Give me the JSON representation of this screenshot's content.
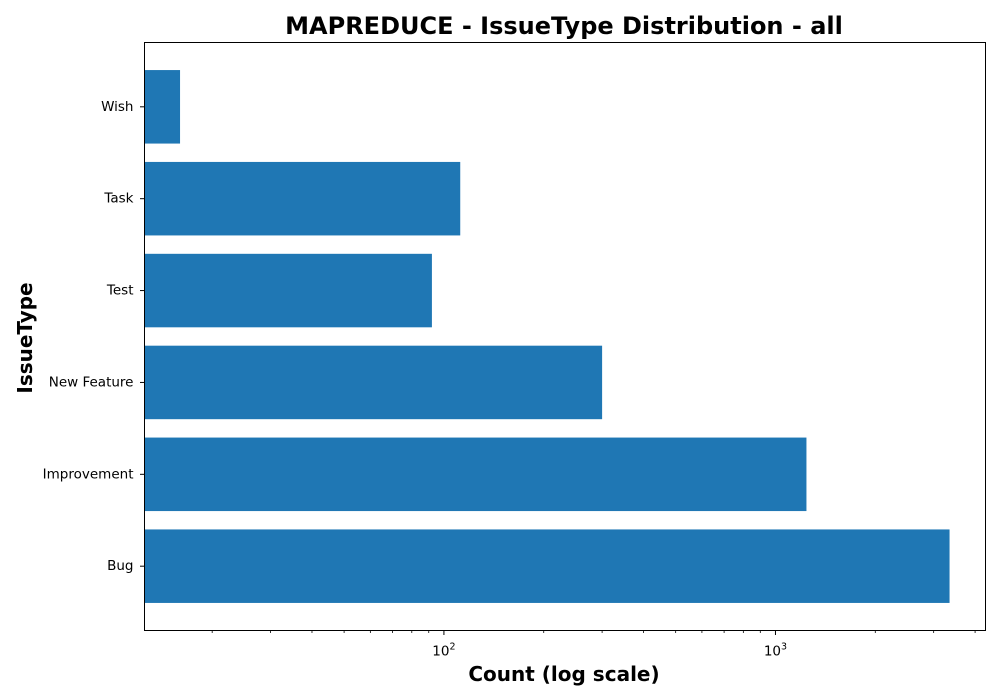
{
  "chart_data": {
    "type": "bar",
    "orientation": "horizontal",
    "title": "MAPREDUCE - IssueType Distribution - all",
    "xlabel": "Count (log scale)",
    "ylabel": "IssueType",
    "x_scale": "log",
    "xlim": [
      12.5,
      4300
    ],
    "categories": [
      "Bug",
      "Improvement",
      "New Feature",
      "Test",
      "Task",
      "Wish"
    ],
    "values": [
      3350,
      1240,
      300,
      92,
      112,
      16
    ],
    "x_major_ticks": [
      {
        "value": 100,
        "base": "10",
        "exp": "2"
      },
      {
        "value": 1000,
        "base": "10",
        "exp": "3"
      }
    ],
    "x_minor_ticks": [
      20,
      30,
      40,
      50,
      60,
      70,
      80,
      90,
      200,
      300,
      400,
      500,
      600,
      700,
      800,
      900,
      2000,
      3000,
      4000
    ],
    "bar_color": "#1f77b4",
    "grid": false,
    "legend": "none"
  }
}
